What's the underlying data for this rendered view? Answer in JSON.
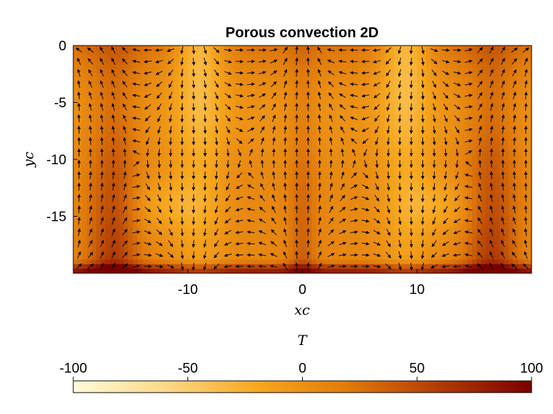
{
  "chart_data": {
    "type": "heatmap",
    "title": "Porous convection 2D",
    "xlabel": "xc",
    "ylabel": "yc",
    "xlim": [
      -20,
      20
    ],
    "ylim": [
      -20,
      0
    ],
    "x_ticks": [
      -10,
      0,
      10
    ],
    "x_tick_labels": [
      "-10",
      "0",
      "10"
    ],
    "y_ticks": [
      0,
      -5,
      -10,
      -15
    ],
    "y_tick_labels": [
      "0",
      "-5",
      "-10",
      "-15"
    ],
    "grid": false,
    "field": "temperature with velocity quiver overlay",
    "hot_upwellings_x": [
      -16.5,
      0,
      16.5
    ],
    "cold_downwellings_x": [
      -9,
      9
    ],
    "quiver_spacing": 1,
    "colorbar": {
      "label": "T",
      "min": -100,
      "max": 100,
      "ticks": [
        -100,
        -50,
        0,
        50,
        100
      ],
      "tick_labels": [
        "-100",
        "-50",
        "0",
        "50",
        "100"
      ],
      "placement": "bottom",
      "colormap": [
        "#fffbd9",
        "#fcd98a",
        "#f7a81f",
        "#e07a0b",
        "#b13c05",
        "#7a0000"
      ]
    }
  }
}
